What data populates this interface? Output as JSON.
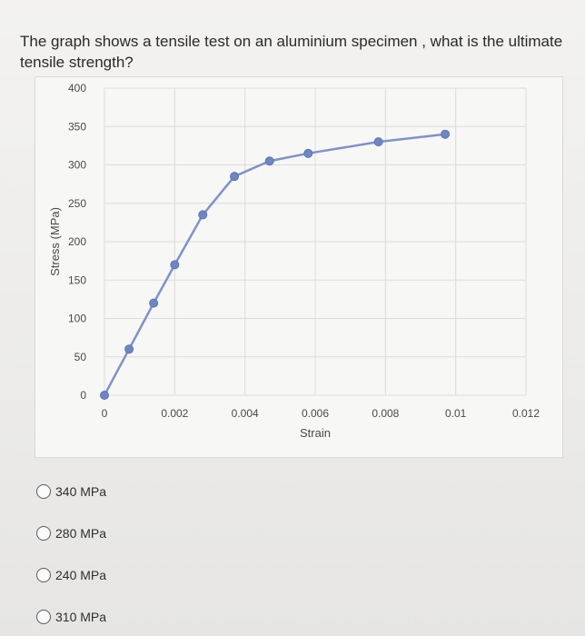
{
  "question": {
    "text": "The graph shows a tensile test on an aluminium specimen , what is the ultimate tensile strength?"
  },
  "chart_data": {
    "type": "line",
    "xlabel": "Strain",
    "ylabel": "Stress (MPa)",
    "xlim": [
      0,
      0.012
    ],
    "ylim": [
      0,
      400
    ],
    "x_ticks": [
      0,
      0.002,
      0.004,
      0.006,
      0.008,
      0.01,
      0.012
    ],
    "x_tick_labels": [
      "0",
      "0.002",
      "0.004",
      "0.006",
      "0.008",
      "0.01",
      "0.012"
    ],
    "y_ticks": [
      0,
      50,
      100,
      150,
      200,
      250,
      300,
      350,
      400
    ],
    "y_tick_labels": [
      "0",
      "50",
      "100",
      "150",
      "200",
      "250",
      "300",
      "350",
      "400"
    ],
    "grid": true,
    "series": [
      {
        "color": "#7f93c9",
        "x": [
          0,
          0.0007,
          0.0014,
          0.002,
          0.0028,
          0.0037,
          0.0047,
          0.0058,
          0.0078,
          0.0097
        ],
        "y": [
          0,
          60,
          120,
          170,
          235,
          285,
          305,
          315,
          330,
          340
        ]
      }
    ]
  },
  "options": [
    {
      "label": "340 MPa"
    },
    {
      "label": "280 MPa"
    },
    {
      "label": "240 MPa"
    },
    {
      "label": "310 MPa"
    }
  ]
}
